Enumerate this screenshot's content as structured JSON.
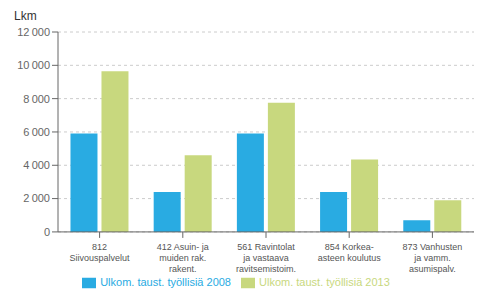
{
  "chart_data": {
    "type": "bar",
    "ylabel": "Lkm",
    "categories": [
      "812\nSiivouspalvelut",
      "412 Asuin- ja\nmuiden rak.\nrakent.",
      "561 Ravintolat\nja vastaava\nravitsemistoim.",
      "854 Korkea-\nasteen koulutus",
      "873 Vanhusten\nja vamm.\nasumispalv."
    ],
    "series": [
      {
        "name": "Ulkom. taust. työllisiä 2008",
        "color": "#29abe2",
        "values": [
          5900,
          2400,
          5900,
          2400,
          700
        ]
      },
      {
        "name": "Ulkom. taust. työllisiä 2013",
        "color": "#c8d87e",
        "values": [
          9650,
          4600,
          7750,
          4350,
          1900
        ]
      }
    ],
    "ylim": [
      0,
      12000
    ],
    "yticks": [
      0,
      {
        "value": 2000,
        "label": "2 000"
      },
      {
        "value": 4000,
        "label": "4 000"
      },
      {
        "value": 6000,
        "label": "6 000"
      },
      {
        "value": 8000,
        "label": "8 000"
      },
      {
        "value": 10000,
        "label": "10 000"
      },
      {
        "value": 12000,
        "label": "12 000"
      }
    ],
    "grid": true,
    "legend": "bottom"
  }
}
